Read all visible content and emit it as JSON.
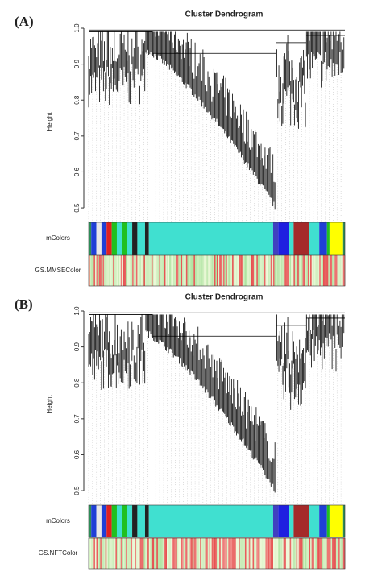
{
  "chart_data": [
    {
      "type": "dendrogram",
      "panel_label": "(A)",
      "title": "Cluster Dendrogram",
      "y_label": "Height",
      "ylim": [
        0.48,
        1.0
      ],
      "yticks": [
        0.5,
        0.6,
        0.7,
        0.8,
        0.9,
        {
          "value": 1,
          "label": "1.0"
        }
      ],
      "tracks": [
        {
          "name": "mColors"
        },
        {
          "name": "GS.MMSEColor"
        }
      ]
    },
    {
      "type": "dendrogram",
      "panel_label": "(B)",
      "title": "Cluster Dendrogram",
      "y_label": "Height",
      "ylim": [
        0.48,
        1.0
      ],
      "yticks": [
        0.5,
        0.6,
        0.7,
        0.8,
        0.9,
        {
          "value": 1,
          "label": "1.0"
        }
      ],
      "tracks": [
        {
          "name": "mColors"
        },
        {
          "name": "GS.NFTColor"
        }
      ]
    }
  ]
}
